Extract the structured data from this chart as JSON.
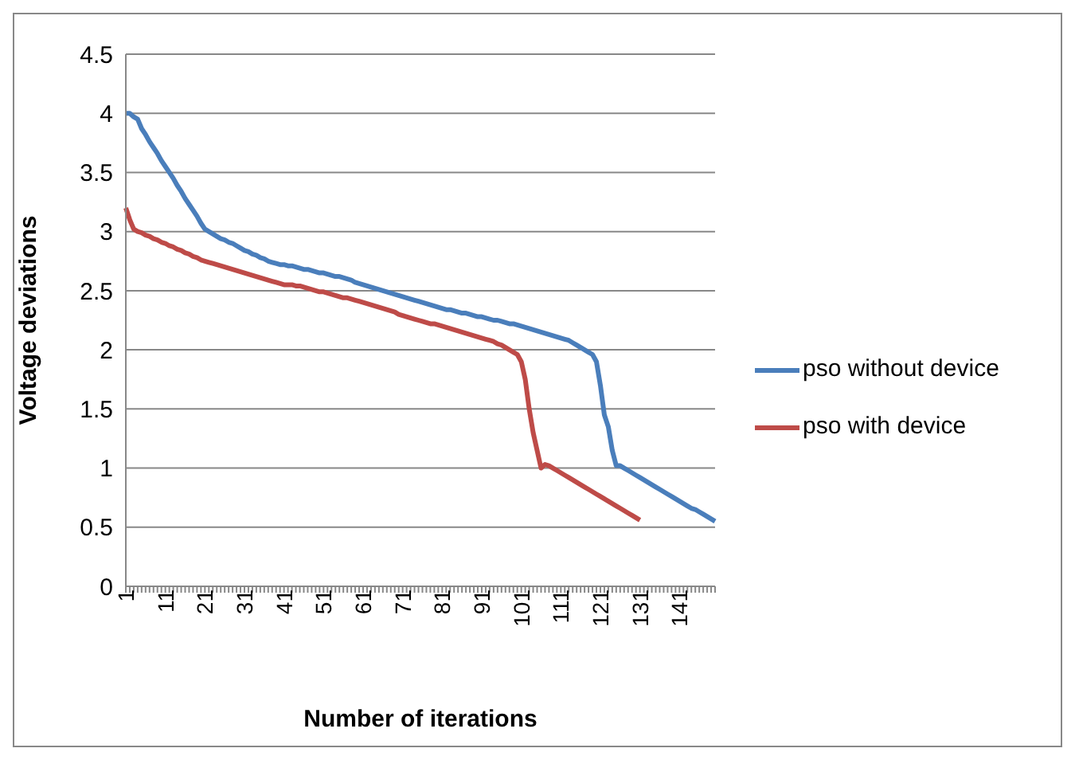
{
  "chart_data": {
    "type": "line",
    "xlabel": "Number of iterations",
    "ylabel": "Voltage deviations",
    "categories": [
      "1",
      null,
      null,
      null,
      null,
      null,
      null,
      null,
      null,
      null,
      "11",
      null,
      null,
      null,
      null,
      null,
      null,
      null,
      null,
      null,
      "21",
      null,
      null,
      null,
      null,
      null,
      null,
      null,
      null,
      null,
      "31",
      null,
      null,
      null,
      null,
      null,
      null,
      null,
      null,
      null,
      "41",
      null,
      null,
      null,
      null,
      null,
      null,
      null,
      null,
      null,
      "51",
      null,
      null,
      null,
      null,
      null,
      null,
      null,
      null,
      null,
      "61",
      null,
      null,
      null,
      null,
      null,
      null,
      null,
      null,
      null,
      "71",
      null,
      null,
      null,
      null,
      null,
      null,
      null,
      null,
      null,
      "81",
      null,
      null,
      null,
      null,
      null,
      null,
      null,
      null,
      null,
      "91",
      null,
      null,
      null,
      null,
      null,
      null,
      null,
      null,
      null,
      "101",
      null,
      null,
      null,
      null,
      null,
      null,
      null,
      null,
      null,
      "111",
      null,
      null,
      null,
      null,
      null,
      null,
      null,
      null,
      null,
      "121",
      null,
      null,
      null,
      null,
      null,
      null,
      null,
      null,
      null,
      "131",
      null,
      null,
      null,
      null,
      null,
      null,
      null,
      null,
      null,
      "141",
      null,
      null,
      null,
      null,
      null,
      null,
      null,
      null,
      null
    ],
    "series": [
      {
        "name": "pso without device",
        "color": "#4a7ebb",
        "values": [
          4.0,
          4.0,
          3.97,
          3.95,
          3.87,
          3.82,
          3.76,
          3.71,
          3.66,
          3.6,
          3.55,
          3.5,
          3.45,
          3.39,
          3.34,
          3.28,
          3.23,
          3.18,
          3.13,
          3.07,
          3.02,
          3.0,
          2.98,
          2.96,
          2.94,
          2.93,
          2.91,
          2.9,
          2.88,
          2.86,
          2.84,
          2.83,
          2.81,
          2.8,
          2.78,
          2.77,
          2.75,
          2.74,
          2.73,
          2.72,
          2.72,
          2.71,
          2.71,
          2.7,
          2.69,
          2.68,
          2.68,
          2.67,
          2.66,
          2.65,
          2.65,
          2.64,
          2.63,
          2.62,
          2.62,
          2.61,
          2.6,
          2.59,
          2.57,
          2.56,
          2.55,
          2.54,
          2.53,
          2.52,
          2.51,
          2.5,
          2.49,
          2.48,
          2.47,
          2.46,
          2.45,
          2.44,
          2.43,
          2.42,
          2.41,
          2.4,
          2.39,
          2.38,
          2.37,
          2.36,
          2.35,
          2.34,
          2.34,
          2.33,
          2.32,
          2.31,
          2.31,
          2.3,
          2.29,
          2.28,
          2.28,
          2.27,
          2.26,
          2.25,
          2.25,
          2.24,
          2.23,
          2.22,
          2.22,
          2.21,
          2.2,
          2.19,
          2.18,
          2.17,
          2.16,
          2.15,
          2.14,
          2.13,
          2.12,
          2.11,
          2.1,
          2.09,
          2.08,
          2.06,
          2.04,
          2.02,
          2.0,
          1.98,
          1.96,
          1.9,
          1.7,
          1.45,
          1.35,
          1.15,
          1.02,
          1.02,
          1.0,
          0.98,
          0.96,
          0.94,
          0.92,
          0.9,
          0.88,
          0.86,
          0.84,
          0.82,
          0.8,
          0.78,
          0.76,
          0.74,
          0.72,
          0.7,
          0.68,
          0.66,
          0.65,
          0.63,
          0.61,
          0.59,
          0.57,
          0.55
        ]
      },
      {
        "name": "pso with device",
        "color": "#be4b48",
        "values": [
          3.2,
          3.1,
          3.02,
          3.0,
          2.99,
          2.97,
          2.96,
          2.94,
          2.93,
          2.91,
          2.9,
          2.88,
          2.87,
          2.85,
          2.84,
          2.82,
          2.81,
          2.79,
          2.78,
          2.76,
          2.75,
          2.74,
          2.73,
          2.72,
          2.71,
          2.7,
          2.69,
          2.68,
          2.67,
          2.66,
          2.65,
          2.64,
          2.63,
          2.62,
          2.61,
          2.6,
          2.59,
          2.58,
          2.57,
          2.56,
          2.55,
          2.55,
          2.55,
          2.54,
          2.54,
          2.53,
          2.52,
          2.51,
          2.5,
          2.49,
          2.49,
          2.48,
          2.47,
          2.46,
          2.45,
          2.44,
          2.44,
          2.43,
          2.42,
          2.41,
          2.4,
          2.39,
          2.38,
          2.37,
          2.36,
          2.35,
          2.34,
          2.33,
          2.32,
          2.3,
          2.29,
          2.28,
          2.27,
          2.26,
          2.25,
          2.24,
          2.23,
          2.22,
          2.22,
          2.21,
          2.2,
          2.19,
          2.18,
          2.17,
          2.16,
          2.15,
          2.14,
          2.13,
          2.12,
          2.11,
          2.1,
          2.09,
          2.08,
          2.07,
          2.05,
          2.04,
          2.02,
          2.0,
          1.98,
          1.96,
          1.9,
          1.75,
          1.5,
          1.3,
          1.15,
          1.0,
          1.03,
          1.02,
          1.0,
          0.98,
          0.96,
          0.94,
          0.92,
          0.9,
          0.88,
          0.86,
          0.84,
          0.82,
          0.8,
          0.78,
          0.76,
          0.74,
          0.72,
          0.7,
          0.68,
          0.66,
          0.64,
          0.62,
          0.6,
          0.58,
          0.56,
          null,
          null,
          null,
          null,
          null,
          null,
          null,
          null,
          null,
          null,
          null,
          null,
          null,
          null,
          null,
          null,
          null,
          null,
          null
        ]
      }
    ],
    "ylim": [
      0,
      4.5
    ],
    "yticks": [
      0,
      0.5,
      1,
      1.5,
      2,
      2.5,
      3,
      3.5,
      4,
      4.5
    ],
    "grid": "y",
    "legend": "right",
    "marker": "none",
    "line_style": "solid"
  }
}
